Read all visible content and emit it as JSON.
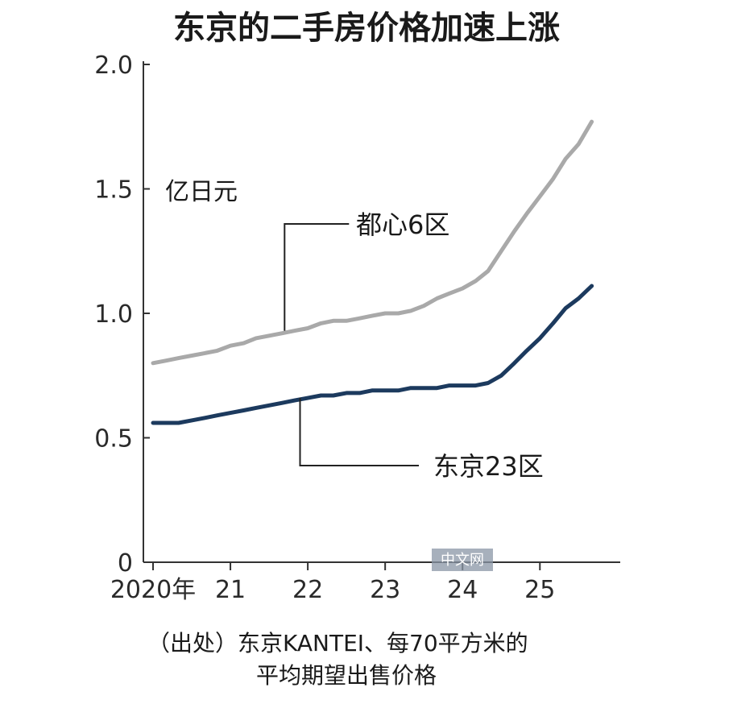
{
  "chart_data": {
    "type": "line",
    "title": "东京的二手房价格加速上涨",
    "unit_label": "亿日元",
    "ylim": [
      0,
      2.0
    ],
    "y_ticks": [
      {
        "value": 0,
        "label": "0"
      },
      {
        "value": 0.5,
        "label": "0.5"
      },
      {
        "value": 1.0,
        "label": "1.0"
      },
      {
        "value": 1.5,
        "label": "1.5"
      },
      {
        "value": 2.0,
        "label": "2.0"
      }
    ],
    "xlim": [
      2020.0,
      2025.83
    ],
    "x_ticks": [
      {
        "value": 2020,
        "label": "2020年"
      },
      {
        "value": 2021,
        "label": "21"
      },
      {
        "value": 2022,
        "label": "22"
      },
      {
        "value": 2023,
        "label": "23"
      },
      {
        "value": 2024,
        "label": "24"
      },
      {
        "value": 2025,
        "label": "25"
      }
    ],
    "series": [
      {
        "name": "都心6区",
        "color": "#a9a9a9",
        "x": [
          2020.0,
          2020.17,
          2020.33,
          2020.5,
          2020.67,
          2020.83,
          2021.0,
          2021.17,
          2021.33,
          2021.5,
          2021.67,
          2021.83,
          2022.0,
          2022.17,
          2022.33,
          2022.5,
          2022.67,
          2022.83,
          2023.0,
          2023.17,
          2023.33,
          2023.5,
          2023.67,
          2023.83,
          2024.0,
          2024.17,
          2024.33,
          2024.5,
          2024.67,
          2024.83,
          2025.0,
          2025.17,
          2025.33,
          2025.5,
          2025.67
        ],
        "values": [
          0.8,
          0.81,
          0.82,
          0.83,
          0.84,
          0.85,
          0.87,
          0.88,
          0.9,
          0.91,
          0.92,
          0.93,
          0.94,
          0.96,
          0.97,
          0.97,
          0.98,
          0.99,
          1.0,
          1.0,
          1.01,
          1.03,
          1.06,
          1.08,
          1.1,
          1.13,
          1.17,
          1.25,
          1.33,
          1.4,
          1.47,
          1.54,
          1.62,
          1.68,
          1.77
        ]
      },
      {
        "name": "东京23区",
        "color": "#1c3a5e",
        "x": [
          2020.0,
          2020.17,
          2020.33,
          2020.5,
          2020.67,
          2020.83,
          2021.0,
          2021.17,
          2021.33,
          2021.5,
          2021.67,
          2021.83,
          2022.0,
          2022.17,
          2022.33,
          2022.5,
          2022.67,
          2022.83,
          2023.0,
          2023.17,
          2023.33,
          2023.5,
          2023.67,
          2023.83,
          2024.0,
          2024.17,
          2024.33,
          2024.5,
          2024.67,
          2024.83,
          2025.0,
          2025.17,
          2025.33,
          2025.5,
          2025.67
        ],
        "values": [
          0.56,
          0.56,
          0.56,
          0.57,
          0.58,
          0.59,
          0.6,
          0.61,
          0.62,
          0.63,
          0.64,
          0.65,
          0.66,
          0.67,
          0.67,
          0.68,
          0.68,
          0.69,
          0.69,
          0.69,
          0.7,
          0.7,
          0.7,
          0.71,
          0.71,
          0.71,
          0.72,
          0.75,
          0.8,
          0.85,
          0.9,
          0.96,
          1.02,
          1.06,
          1.11
        ]
      }
    ],
    "annotations": [
      {
        "series": "都心6区",
        "label": "都心6区"
      },
      {
        "series": "东京23区",
        "label": "东京23区"
      }
    ],
    "source_lines": [
      "（出处）东京KANTEI、每70平方米的",
      "平均期望出售价格"
    ],
    "watermark": "中文网",
    "grid": false
  }
}
